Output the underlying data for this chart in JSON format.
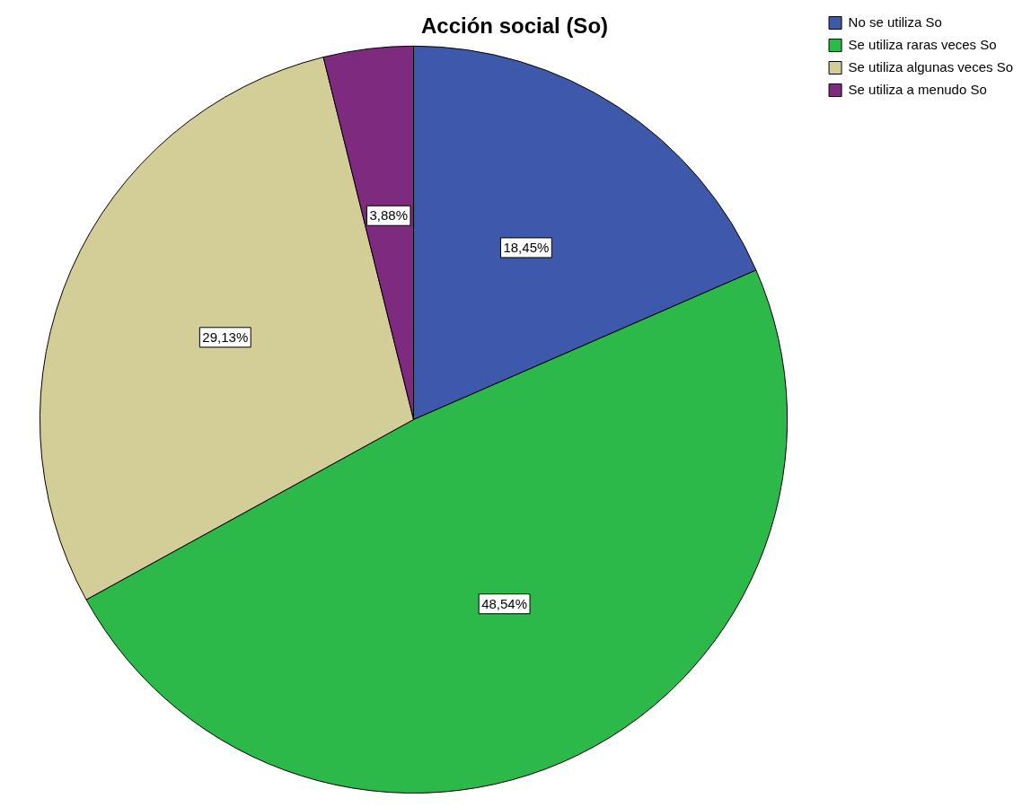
{
  "chart_data": {
    "type": "pie",
    "title": "Acción social (So)",
    "categories": [
      "No se utiliza So",
      "Se utiliza raras veces So",
      "Se utiliza algunas veces So",
      "Se utiliza a menudo So"
    ],
    "values": [
      18.45,
      48.54,
      29.13,
      3.88
    ],
    "colors": [
      "#3e58ac",
      "#2db84a",
      "#d3ce97",
      "#7e2a7e"
    ],
    "value_labels": [
      "18,45%",
      "48,54%",
      "29,13%",
      "3,88%"
    ],
    "legend": "top right"
  }
}
